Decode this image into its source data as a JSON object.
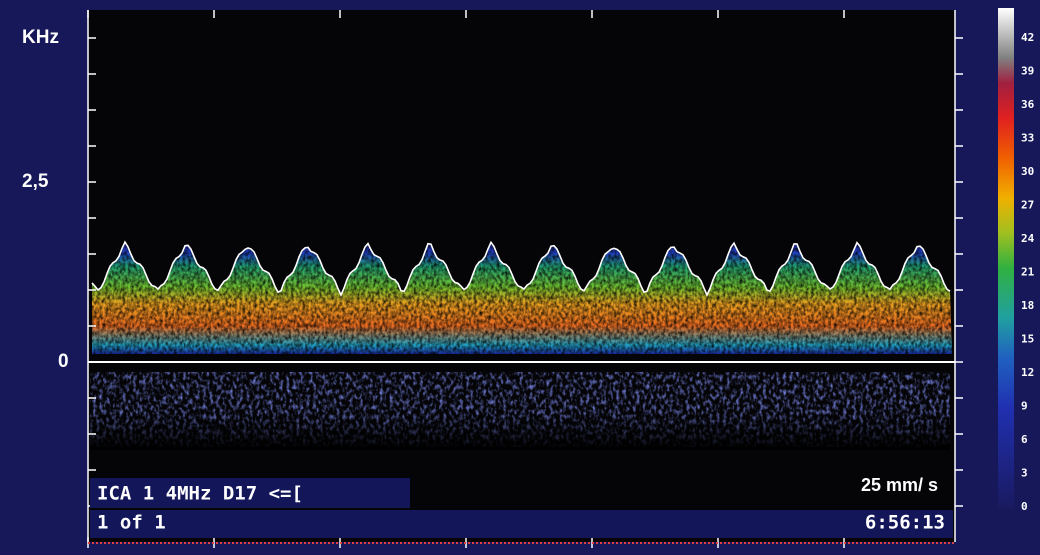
{
  "axis": {
    "unit": "KHz",
    "labels": [
      "2,5",
      "0"
    ]
  },
  "color_scale": {
    "labels": [
      42,
      39,
      36,
      33,
      30,
      27,
      24,
      21,
      18,
      15,
      12,
      9,
      6,
      3,
      0
    ]
  },
  "overlay": {
    "probe_line": "ICA 1 4MHz D17 <=[",
    "page": "1 of 1",
    "sweep_speed": "25 mm/ s",
    "time": "6:56:13"
  }
}
